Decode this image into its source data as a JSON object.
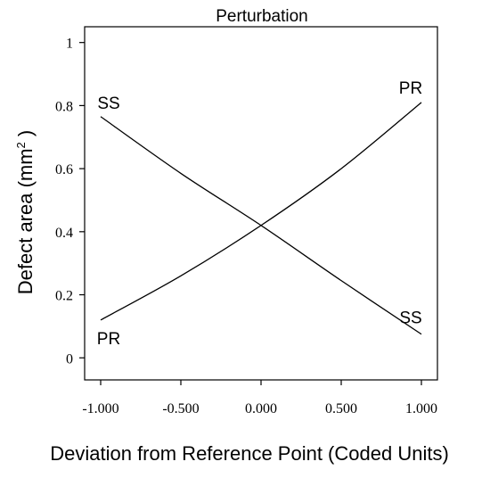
{
  "chart_data": {
    "type": "line",
    "title": "Perturbation",
    "xlabel": "Deviation from Reference Point (Coded Units)",
    "ylabel": "Defect area (mm",
    "ylabel_sup": "2",
    "ylabel_close": " )",
    "xlim": [
      -1.1,
      1.1
    ],
    "ylim": [
      -0.07,
      1.05
    ],
    "x_ticks": [
      -1,
      -0.5,
      0,
      0.5,
      1
    ],
    "x_tick_labels": [
      "-1.000",
      "-0.500",
      "0.000",
      "0.500",
      "1.000"
    ],
    "y_ticks": [
      0,
      0.2,
      0.4,
      0.6,
      0.8,
      1
    ],
    "y_tick_labels": [
      "0",
      "0.2",
      "0.4",
      "0.6",
      "0.8",
      "1"
    ],
    "grid": false,
    "series": [
      {
        "name": "SS",
        "x": [
          -1,
          -0.5,
          0,
          0.5,
          1
        ],
        "values": [
          0.765,
          0.585,
          0.42,
          0.245,
          0.075
        ]
      },
      {
        "name": "PR",
        "x": [
          -1,
          -0.5,
          0,
          0.5,
          1
        ],
        "values": [
          0.12,
          0.26,
          0.42,
          0.6,
          0.81
        ]
      }
    ],
    "annotations": [
      {
        "text": "SS",
        "series": "SS",
        "end": "start"
      },
      {
        "text": "SS",
        "series": "SS",
        "end": "end"
      },
      {
        "text": "PR",
        "series": "PR",
        "end": "start"
      },
      {
        "text": "PR",
        "series": "PR",
        "end": "end"
      }
    ]
  }
}
